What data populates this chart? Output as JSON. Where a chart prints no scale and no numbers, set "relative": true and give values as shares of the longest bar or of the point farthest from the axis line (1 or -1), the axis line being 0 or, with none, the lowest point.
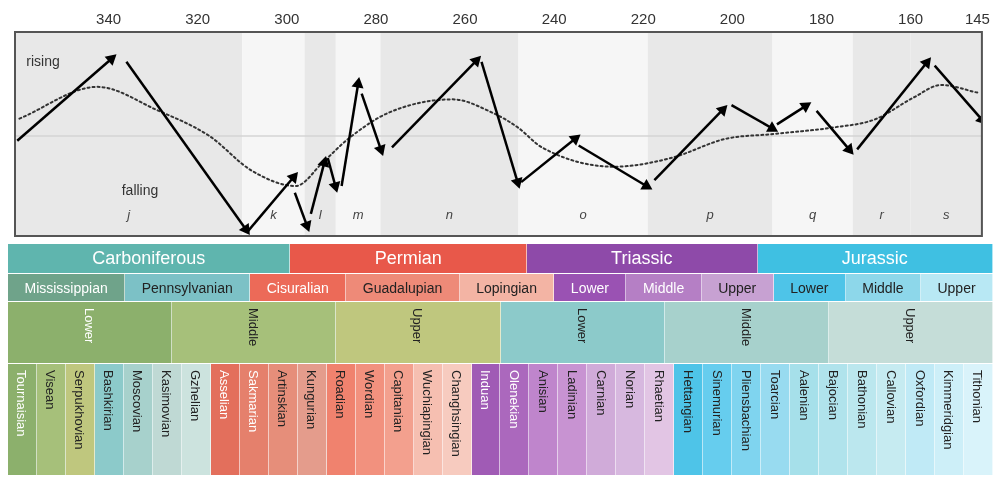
{
  "chart_data": [
    {
      "type": "line",
      "relative": true,
      "xlim": [
        361,
        144
      ],
      "xticks": [
        340,
        320,
        300,
        280,
        260,
        240,
        220,
        200,
        180,
        160,
        145
      ],
      "line_style": "solid",
      "marker": "triangle",
      "series": [
        {
          "color": "#000000",
          "x": [
            360.5,
            339.4
          ],
          "values": [
            -0.05,
            0.8
          ]
        },
        {
          "color": "#000000",
          "x": [
            336.0,
            309.2
          ],
          "values": [
            0.77,
            -0.97
          ]
        },
        {
          "color": "#000000",
          "x": [
            308.9,
            298.5
          ],
          "values": [
            -1,
            -0.43
          ]
        },
        {
          "color": "#000000",
          "x": [
            298.2,
            295.5
          ],
          "values": [
            -0.59,
            -0.93
          ]
        },
        {
          "color": "#000000",
          "x": [
            294.6,
            291.6
          ],
          "values": [
            -0.81,
            -0.28
          ]
        },
        {
          "color": "#000000",
          "x": [
            290.8,
            289.1
          ],
          "values": [
            -0.23,
            -0.52
          ]
        },
        {
          "color": "#000000",
          "x": [
            287.7,
            284.0
          ],
          "values": [
            -0.52,
            0.54
          ]
        },
        {
          "color": "#000000",
          "x": [
            283.2,
            278.9
          ],
          "values": [
            0.44,
            -0.14
          ]
        },
        {
          "color": "#000000",
          "x": [
            276.4,
            257.5
          ],
          "values": [
            -0.12,
            0.78
          ]
        },
        {
          "color": "#000000",
          "x": [
            256.3,
            248.2
          ],
          "values": [
            0.77,
            -0.48
          ]
        },
        {
          "color": "#000000",
          "x": [
            247.4,
            235.3
          ],
          "values": [
            -0.48,
            -0.03
          ]
        },
        {
          "color": "#000000",
          "x": [
            234.5,
            219.3
          ],
          "values": [
            -0.1,
            -0.52
          ]
        },
        {
          "color": "#000000",
          "x": [
            217.5,
            202.2
          ],
          "values": [
            -0.46,
            0.27
          ]
        },
        {
          "color": "#000000",
          "x": [
            200.2,
            191.1
          ],
          "values": [
            0.32,
            0.08
          ]
        },
        {
          "color": "#000000",
          "x": [
            190.0,
            183.6
          ],
          "values": [
            0.12,
            0.31
          ]
        },
        {
          "color": "#000000",
          "x": [
            181.1,
            173.8
          ],
          "values": [
            0.26,
            -0.14
          ]
        },
        {
          "color": "#000000",
          "x": [
            172.0,
            156.4
          ],
          "values": [
            -0.14,
            0.76
          ]
        },
        {
          "color": "#000000",
          "x": [
            154.6,
            144
          ],
          "values": [
            0.73,
            0.17
          ]
        },
        {
          "color": "#333333",
          "line_style": "dotted",
          "marker": "none",
          "x": [
            360.0,
            342.5,
            329.2,
            317.4,
            307.9,
            298.0,
            291.8,
            286.2,
            277.2,
            262.8,
            253.8,
            248.2,
            242.7,
            226.6,
            213.8,
            201.5,
            190.8,
            177.0,
            168.1,
            159.3,
            153.1,
            145.0
          ],
          "values": [
            0.18,
            0.51,
            0.27,
            0,
            -0.36,
            -0.52,
            -0.27,
            -0.03,
            0.24,
            0.38,
            0.24,
            0.09,
            -0.12,
            -0.32,
            -0.23,
            -0.03,
            0.02,
            0.09,
            0.17,
            0.4,
            0.53,
            0.45
          ]
        }
      ],
      "bands": [
        {
          "axis": "x",
          "from": 361,
          "to": 310,
          "label": "j",
          "color": "#e8e8e8"
        },
        {
          "axis": "x",
          "from": 310,
          "to": 296,
          "label": "k",
          "color": "#f6f6f6"
        },
        {
          "axis": "x",
          "from": 296,
          "to": 289,
          "label": "l",
          "color": "#e8e8e8"
        },
        {
          "axis": "x",
          "from": 289,
          "to": 279,
          "label": "m",
          "color": "#f6f6f6"
        },
        {
          "axis": "x",
          "from": 279,
          "to": 248,
          "label": "n",
          "color": "#e8e8e8"
        },
        {
          "axis": "x",
          "from": 248,
          "to": 219,
          "label": "o",
          "color": "#f6f6f6"
        },
        {
          "axis": "x",
          "from": 219,
          "to": 191,
          "label": "p",
          "color": "#e8e8e8"
        },
        {
          "axis": "x",
          "from": 191,
          "to": 173,
          "label": "q",
          "color": "#f6f6f6"
        },
        {
          "axis": "x",
          "from": 173,
          "to": 160,
          "label": "r",
          "color": "#e8e8e8"
        },
        {
          "axis": "x",
          "from": 160,
          "to": 144,
          "label": "s",
          "color": "#e8e8e8"
        }
      ],
      "ref_lines": [
        {
          "axis": "y",
          "value": 0,
          "color": "#d4d4d4"
        }
      ],
      "annotations": [
        "rising",
        "falling"
      ]
    },
    {
      "type": "other",
      "annotations": [
        "Carboniferous",
        "Permian",
        "Triassic",
        "Jurassic"
      ],
      "colors": [
        "#5fb5ae",
        "#e8584a",
        "#8e4aa9",
        "#3fc0e2"
      ]
    },
    {
      "type": "other",
      "annotations": [
        "Mississippian",
        "Pennsylvanian",
        "Cisuralian",
        "Guadalupian",
        "Lopingian",
        "Lower",
        "Middle",
        "Upper",
        "Lower",
        "Middle",
        "Upper"
      ],
      "colors": [
        "#6fa38a",
        "#7cc1c6",
        "#ec6a58",
        "#ee8a78",
        "#f3b4a4",
        "#9a52b3",
        "#b57fc5",
        "#c7a1d2",
        "#4ec4e8",
        "#8dd7ea",
        "#b8e8f4"
      ]
    },
    {
      "type": "other",
      "annotations": [
        "Lower",
        "Middle",
        "Upper",
        "Lower",
        "Middle",
        "Upper"
      ],
      "colors": [
        "#8cb06c",
        "#a6c07a",
        "#bfc77e",
        "#8ccaca",
        "#a7d1cc",
        "#c5ddd8"
      ]
    },
    {
      "type": "other",
      "annotations": [
        "Tournaisian",
        "Visean",
        "Serpukhovian",
        "Bashkirian",
        "Moscovian",
        "Kasimovian",
        "Gzhelian",
        "Asselian",
        "Sakmarian",
        "Artinskian",
        "Kungurian",
        "Roadian",
        "Wordian",
        "Capitanian",
        "Wuchiapingian",
        "Changhsingian",
        "Induan",
        "Olenekian",
        "Anisian",
        "Ladinian",
        "Carnian",
        "Norian",
        "Rhaetian",
        "Hettangian",
        "Sinemurian",
        "Pliensbachian",
        "Toarcian",
        "Aalenian",
        "Bajocian",
        "Bathonian",
        "Callovian",
        "Oxfordian",
        "Kimmeridgian",
        "Tithonian"
      ],
      "colors": [
        "#8cb06c",
        "#a6c07a",
        "#bfc77e",
        "#8ccaca",
        "#a7d1cc",
        "#bfd9d4",
        "#cce3de",
        "#e36f5c",
        "#e5806c",
        "#e68e7a",
        "#e49c8c",
        "#f0826e",
        "#f2917e",
        "#f3a08e",
        "#f6bfb1",
        "#f7cbbf",
        "#a05bb5",
        "#ab68bd",
        "#bf85cc",
        "#c893d2",
        "#d0abd9",
        "#d7b8df",
        "#e2c5e4",
        "#4ec4e8",
        "#66cdee",
        "#7fd4ef",
        "#98dbf0",
        "#a6e0ea",
        "#b0e3ec",
        "#bbe7ee",
        "#c6ebf1",
        "#c0eaf6",
        "#cdeff8",
        "#d9f3fa"
      ]
    }
  ]
}
